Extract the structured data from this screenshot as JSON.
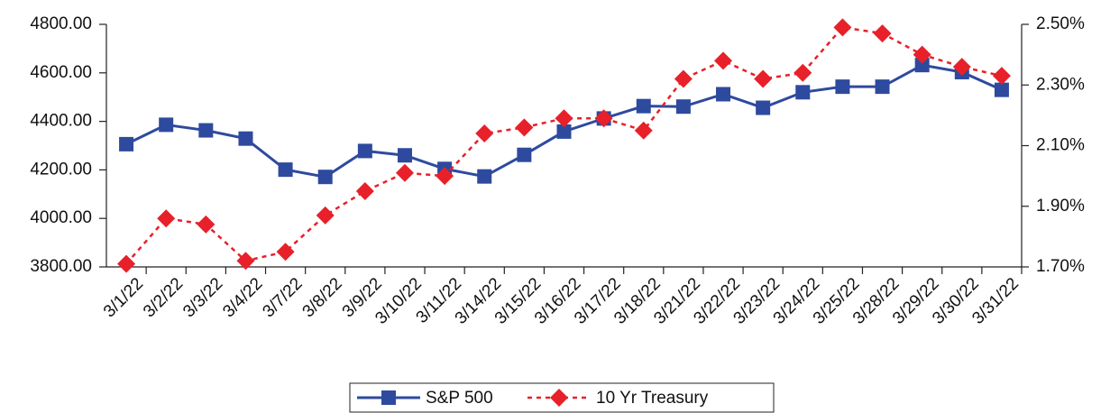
{
  "chart_data": {
    "type": "line",
    "categories": [
      "3/1/22",
      "3/2/22",
      "3/3/22",
      "3/4/22",
      "3/7/22",
      "3/8/22",
      "3/9/22",
      "3/10/22",
      "3/11/22",
      "3/14/22",
      "3/15/22",
      "3/16/22",
      "3/17/22",
      "3/18/22",
      "3/21/22",
      "3/22/22",
      "3/23/22",
      "3/24/22",
      "3/25/22",
      "3/28/22",
      "3/29/22",
      "3/30/22",
      "3/31/22"
    ],
    "series": [
      {
        "name": "S&P 500",
        "color": "#2e4a9e",
        "axis": "y",
        "values": [
          4306,
          4386,
          4363,
          4329,
          4201,
          4171,
          4278,
          4260,
          4204,
          4173,
          4262,
          4358,
          4412,
          4463,
          4461,
          4512,
          4456,
          4520,
          4543,
          4543,
          4632,
          4603,
          4530
        ]
      },
      {
        "name": "10 Yr Treasury",
        "color": "#e8202a",
        "axis": "y2",
        "values": [
          1.71,
          1.86,
          1.84,
          1.72,
          1.75,
          1.87,
          1.95,
          2.01,
          2.0,
          2.14,
          2.16,
          2.19,
          2.19,
          2.15,
          2.32,
          2.38,
          2.32,
          2.34,
          2.49,
          2.47,
          2.4,
          2.36,
          2.33
        ]
      }
    ],
    "ylim": [
      3800,
      4800
    ],
    "yticks": [
      {
        "value": 3800,
        "label": "3800.00"
      },
      {
        "value": 4000,
        "label": "4000.00"
      },
      {
        "value": 4200,
        "label": "4200.00"
      },
      {
        "value": 4400,
        "label": "4400.00"
      },
      {
        "value": 4600,
        "label": "4600.00"
      },
      {
        "value": 4800,
        "label": "4800.00"
      }
    ],
    "y2lim": [
      1.7,
      2.5
    ],
    "y2ticks": [
      {
        "value": 1.7,
        "label": "1.70%"
      },
      {
        "value": 1.9,
        "label": "1.90%"
      },
      {
        "value": 2.1,
        "label": "2.10%"
      },
      {
        "value": 2.3,
        "label": "2.30%"
      },
      {
        "value": 2.5,
        "label": "2.50%"
      }
    ],
    "grid": false,
    "legend": "bottom"
  }
}
